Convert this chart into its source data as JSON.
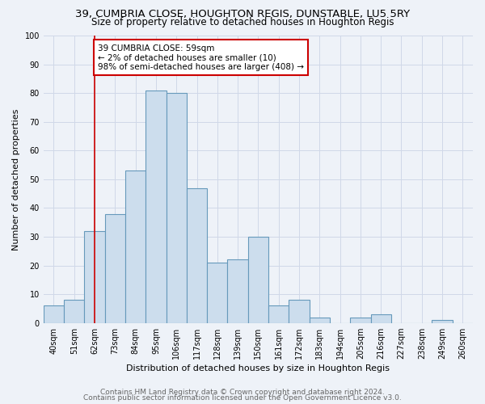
{
  "title1": "39, CUMBRIA CLOSE, HOUGHTON REGIS, DUNSTABLE, LU5 5RY",
  "title2": "Size of property relative to detached houses in Houghton Regis",
  "xlabel": "Distribution of detached houses by size in Houghton Regis",
  "ylabel": "Number of detached properties",
  "categories": [
    "40sqm",
    "51sqm",
    "62sqm",
    "73sqm",
    "84sqm",
    "95sqm",
    "106sqm",
    "117sqm",
    "128sqm",
    "139sqm",
    "150sqm",
    "161sqm",
    "172sqm",
    "183sqm",
    "194sqm",
    "205sqm",
    "216sqm",
    "227sqm",
    "238sqm",
    "249sqm",
    "260sqm"
  ],
  "values": [
    6,
    8,
    32,
    38,
    53,
    81,
    80,
    47,
    21,
    22,
    30,
    6,
    8,
    2,
    0,
    2,
    3,
    0,
    0,
    1,
    0
  ],
  "bar_color": "#ccdded",
  "bar_edge_color": "#6699bb",
  "bar_linewidth": 0.8,
  "vline_x_idx": 2,
  "vline_color": "#cc0000",
  "annotation_text": "39 CUMBRIA CLOSE: 59sqm\n← 2% of detached houses are smaller (10)\n98% of semi-detached houses are larger (408) →",
  "annotation_box_color": "#ffffff",
  "annotation_box_edge": "#cc0000",
  "ylim": [
    0,
    100
  ],
  "yticks": [
    0,
    10,
    20,
    30,
    40,
    50,
    60,
    70,
    80,
    90,
    100
  ],
  "bg_color": "#eef2f8",
  "grid_color": "#d0d8e8",
  "footer1": "Contains HM Land Registry data © Crown copyright and database right 2024.",
  "footer2": "Contains public sector information licensed under the Open Government Licence v3.0.",
  "title_fontsize": 9.5,
  "subtitle_fontsize": 8.5,
  "axis_label_fontsize": 8,
  "tick_fontsize": 7,
  "footer_fontsize": 6.5,
  "annotation_fontsize": 7.5
}
